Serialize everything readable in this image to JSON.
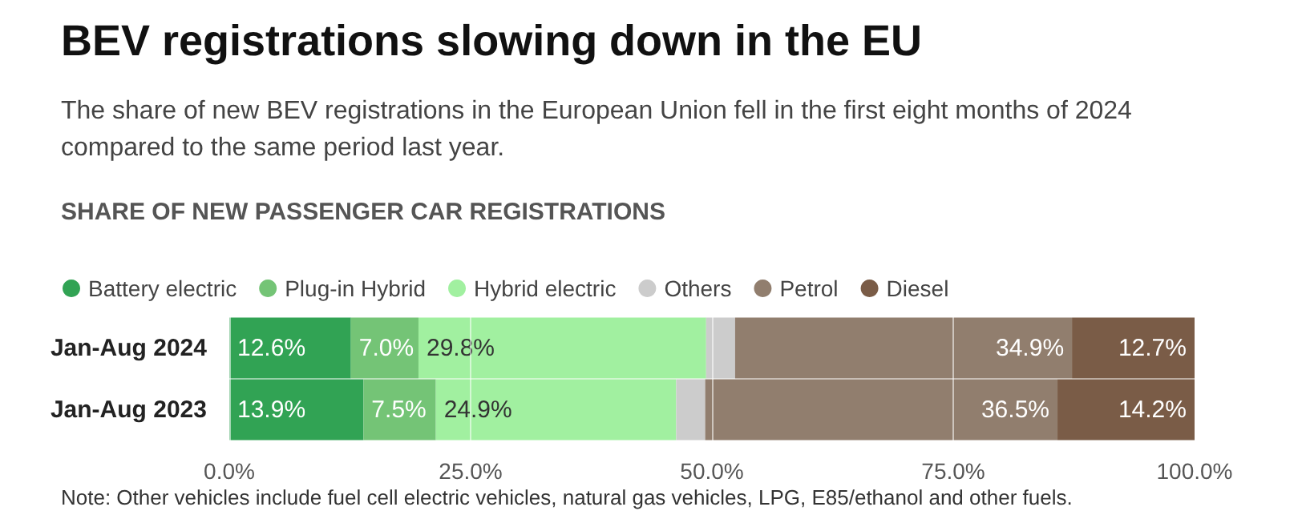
{
  "chart_data": {
    "type": "bar",
    "orientation": "horizontal",
    "stacked": true,
    "title": "BEV registrations slowing down in the EU",
    "subtitle": "The share of new BEV registrations in the European Union fell in the first eight months of 2024 compared to the same period last year.",
    "annotations": [
      "SHARE OF NEW PASSENGER CAR REGISTRATIONS",
      "Note: Other vehicles include fuel cell electric vehicles, natural gas vehicles, LPG, E85/ethanol and other fuels."
    ],
    "categories": [
      "Jan-Aug 2024",
      "Jan-Aug 2023"
    ],
    "series": [
      {
        "name": "Battery electric",
        "color": "#31a354",
        "values": [
          12.6,
          13.9
        ],
        "value_labels": [
          "12.6%",
          "13.9%"
        ]
      },
      {
        "name": "Plug-in Hybrid",
        "color": "#74c476",
        "values": [
          7.0,
          7.5
        ],
        "value_labels": [
          "7.0%",
          "7.5%"
        ]
      },
      {
        "name": "Hybrid electric",
        "color": "#a1f0a0",
        "values": [
          29.8,
          24.9
        ],
        "value_labels": [
          "29.8%",
          "24.9%"
        ]
      },
      {
        "name": "Others",
        "color": "#cccccc",
        "values": [
          3.0,
          3.0
        ],
        "value_labels": [
          null,
          null
        ]
      },
      {
        "name": "Petrol",
        "color": "#917e6e",
        "values": [
          34.9,
          36.5
        ],
        "value_labels": [
          "34.9%",
          "36.5%"
        ]
      },
      {
        "name": "Diesel",
        "color": "#7a5c47",
        "values": [
          12.7,
          14.2
        ],
        "value_labels": [
          "12.7%",
          "14.2%"
        ]
      }
    ],
    "xlim": [
      0,
      100
    ],
    "xticks": [
      {
        "value": 0,
        "label": "0.0%"
      },
      {
        "value": 25,
        "label": "25.0%"
      },
      {
        "value": 50,
        "label": "50.0%"
      },
      {
        "value": 75,
        "label": "75.0%"
      },
      {
        "value": 100,
        "label": "100.0%"
      }
    ],
    "grid": "x",
    "legend": "top left"
  }
}
